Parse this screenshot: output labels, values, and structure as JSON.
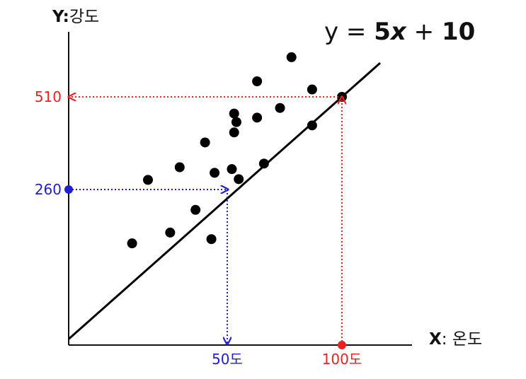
{
  "chart_data": {
    "type": "scatter",
    "title": "",
    "xlabel_prefix": "X",
    "xlabel_text": ": 온도",
    "ylabel_prefix": "Y:",
    "ylabel_text": "강도",
    "equation": {
      "left": "y = ",
      "coef": "5",
      "var": "x",
      "plus": " + ",
      "intercept": "10"
    },
    "fit": {
      "slope": 5,
      "intercept": 10
    },
    "xlim": [
      0,
      125
    ],
    "ylim": [
      0,
      670
    ],
    "points": [
      {
        "x": 20,
        "y": 170
      },
      {
        "x": 25,
        "y": 286
      },
      {
        "x": 32,
        "y": 188
      },
      {
        "x": 35,
        "y": 320
      },
      {
        "x": 40,
        "y": 226
      },
      {
        "x": 43,
        "y": 387
      },
      {
        "x": 45,
        "y": 177
      },
      {
        "x": 46,
        "y": 305
      },
      {
        "x": 52,
        "y": 315
      },
      {
        "x": 53,
        "y": 414
      },
      {
        "x": 53,
        "y": 465
      },
      {
        "x": 54,
        "y": 442
      },
      {
        "x": 55,
        "y": 288
      },
      {
        "x": 63,
        "y": 454
      },
      {
        "x": 63,
        "y": 552
      },
      {
        "x": 66,
        "y": 330
      },
      {
        "x": 73,
        "y": 480
      },
      {
        "x": 78,
        "y": 617
      },
      {
        "x": 87,
        "y": 530
      },
      {
        "x": 87,
        "y": 433
      },
      {
        "x": 100,
        "y": 510
      }
    ],
    "guides": [
      {
        "x": 50,
        "y": 260,
        "x_label": "50도",
        "y_label": "260",
        "color": "#1f1fd0"
      },
      {
        "x": 100,
        "y": 510,
        "x_label": "100도",
        "y_label": "510",
        "color": "#ee2020"
      }
    ],
    "colors": {
      "axis": "#111111",
      "points": "#000000",
      "blue": "#1f1fd0",
      "red": "#ee2020"
    }
  }
}
